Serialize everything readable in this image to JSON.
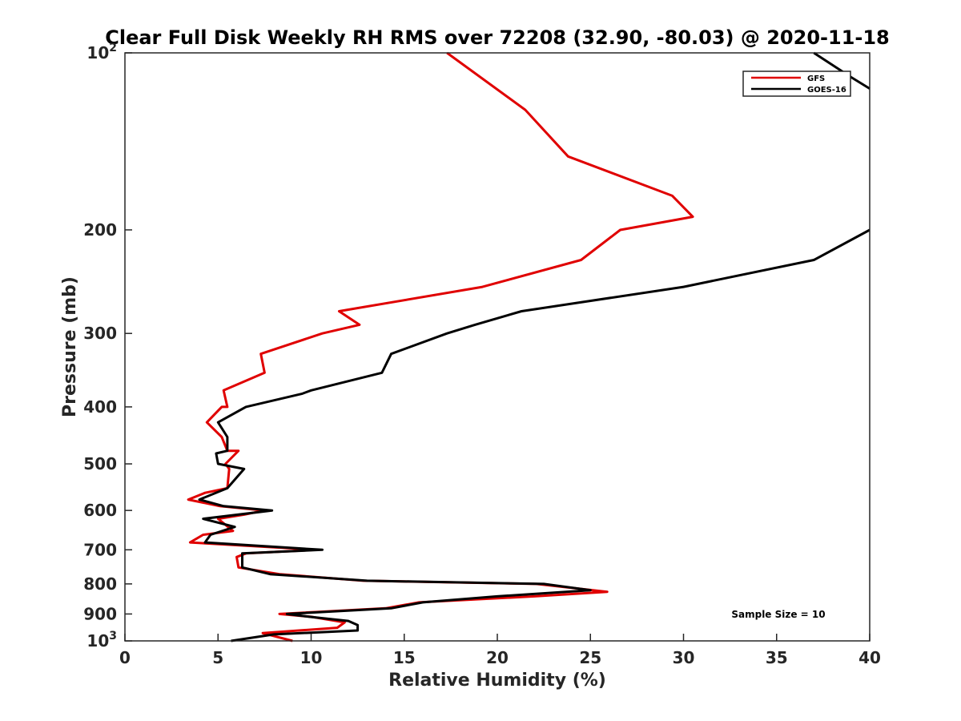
{
  "chart_data": {
    "type": "line",
    "title": "Clear Full Disk Weekly RH RMS over 72208 (32.90, -80.03) @ 2020-11-18",
    "xlabel": "Relative Humidity (%)",
    "ylabel": "Pressure (mb)",
    "xlim": [
      0,
      40
    ],
    "ylim": [
      100,
      1000
    ],
    "y_scale": "log",
    "y_direction": "reversed",
    "grid": false,
    "legend_position": "top-right",
    "x_ticks": [
      0,
      5,
      10,
      15,
      20,
      25,
      30,
      35,
      40
    ],
    "y_ticks": [
      {
        "value": 100,
        "label": "10",
        "sup": "2"
      },
      {
        "value": 200,
        "label": "200"
      },
      {
        "value": 300,
        "label": "300"
      },
      {
        "value": 400,
        "label": "400"
      },
      {
        "value": 500,
        "label": "500"
      },
      {
        "value": 600,
        "label": "600"
      },
      {
        "value": 700,
        "label": "700"
      },
      {
        "value": 800,
        "label": "800"
      },
      {
        "value": 900,
        "label": "900"
      },
      {
        "value": 1000,
        "label": "10",
        "sup": "3"
      }
    ],
    "annotation": "Sample Size = 10",
    "series": [
      {
        "name": "GFS",
        "color": "#e00000",
        "points": [
          [
            17.3,
            100
          ],
          [
            21.5,
            125
          ],
          [
            23.8,
            150
          ],
          [
            29.4,
            175
          ],
          [
            30.5,
            190
          ],
          [
            26.6,
            200
          ],
          [
            24.5,
            225
          ],
          [
            19.2,
            250
          ],
          [
            11.5,
            275
          ],
          [
            12.6,
            290
          ],
          [
            10.6,
            300
          ],
          [
            7.3,
            325
          ],
          [
            7.5,
            350
          ],
          [
            5.3,
            375
          ],
          [
            5.5,
            400
          ],
          [
            5.2,
            400
          ],
          [
            4.4,
            425
          ],
          [
            5.2,
            450
          ],
          [
            5.5,
            475
          ],
          [
            6.1,
            475
          ],
          [
            5.4,
            500
          ],
          [
            5.6,
            510
          ],
          [
            5.5,
            550
          ],
          [
            4.3,
            560
          ],
          [
            3.4,
            575
          ],
          [
            5.1,
            590
          ],
          [
            7.5,
            600
          ],
          [
            6.4,
            610
          ],
          [
            5.0,
            620
          ],
          [
            5.8,
            650
          ],
          [
            4.2,
            660
          ],
          [
            3.5,
            680
          ],
          [
            10.3,
            700
          ],
          [
            6.5,
            710
          ],
          [
            6.0,
            720
          ],
          [
            6.1,
            750
          ],
          [
            8.3,
            770
          ],
          [
            12.8,
            790
          ],
          [
            22.1,
            800
          ],
          [
            25.9,
            825
          ],
          [
            22.0,
            840
          ],
          [
            15.8,
            860
          ],
          [
            14.0,
            880
          ],
          [
            8.3,
            900
          ],
          [
            10.0,
            910
          ],
          [
            11.8,
            930
          ],
          [
            11.4,
            950
          ],
          [
            7.4,
            970
          ],
          [
            9.0,
            1000
          ]
        ]
      },
      {
        "name": "GOES-16",
        "color": "#000000",
        "points": [
          [
            37.0,
            100
          ],
          [
            39.0,
            110
          ],
          [
            40.0,
            115
          ],
          null,
          [
            40.0,
            200
          ],
          [
            37.0,
            225
          ],
          [
            30.0,
            250
          ],
          [
            21.3,
            275
          ],
          [
            18.8,
            290
          ],
          [
            17.3,
            300
          ],
          [
            14.3,
            325
          ],
          [
            13.8,
            350
          ],
          [
            10.0,
            375
          ],
          [
            9.5,
            380
          ],
          [
            6.5,
            400
          ],
          [
            5.0,
            425
          ],
          [
            5.5,
            450
          ],
          [
            5.5,
            475
          ],
          [
            4.9,
            480
          ],
          [
            5.0,
            500
          ],
          [
            6.4,
            510
          ],
          [
            5.5,
            550
          ],
          [
            4.0,
            575
          ],
          [
            5.3,
            590
          ],
          [
            7.9,
            600
          ],
          [
            4.2,
            620
          ],
          [
            5.9,
            640
          ],
          [
            4.6,
            660
          ],
          [
            4.3,
            680
          ],
          [
            10.6,
            700
          ],
          [
            6.3,
            710
          ],
          [
            6.3,
            750
          ],
          [
            7.8,
            770
          ],
          [
            13.0,
            790
          ],
          [
            22.5,
            800
          ],
          [
            25.0,
            820
          ],
          [
            20.0,
            840
          ],
          [
            16.0,
            860
          ],
          [
            14.3,
            880
          ],
          [
            8.7,
            900
          ],
          [
            9.9,
            910
          ],
          [
            12.0,
            925
          ],
          [
            12.5,
            940
          ],
          [
            12.5,
            960
          ],
          [
            8.0,
            975
          ],
          [
            5.7,
            1000
          ]
        ]
      }
    ]
  }
}
